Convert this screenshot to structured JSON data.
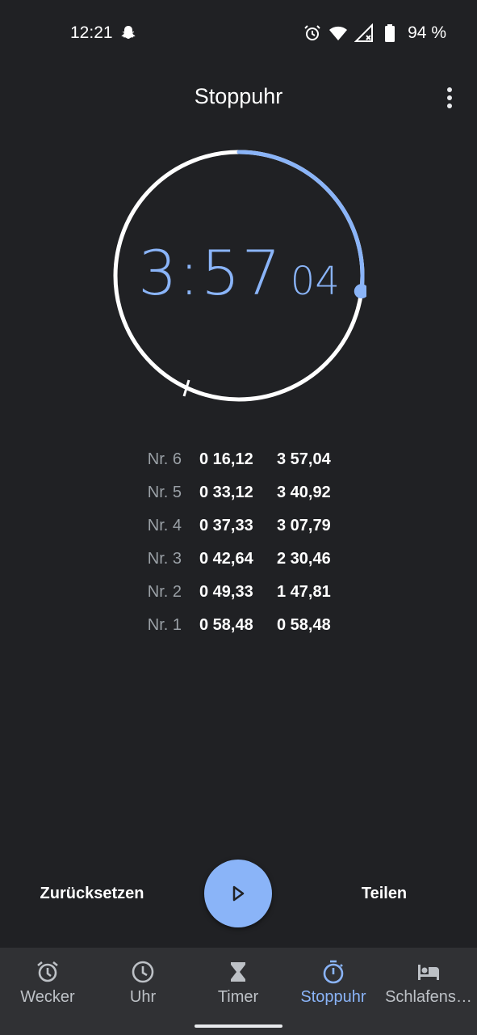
{
  "status_bar": {
    "time": "12:21",
    "battery": "94 %"
  },
  "app_bar": {
    "title": "Stoppuhr"
  },
  "stopwatch": {
    "minutes_seconds": "3:57",
    "hundredths": "04",
    "progress": 0.27
  },
  "laps": [
    {
      "number": "Nr. 6",
      "lap_time": "0 16,12",
      "total_time": "3 57,04"
    },
    {
      "number": "Nr. 5",
      "lap_time": "0 33,12",
      "total_time": "3 40,92"
    },
    {
      "number": "Nr. 4",
      "lap_time": "0 37,33",
      "total_time": "3 07,79"
    },
    {
      "number": "Nr. 3",
      "lap_time": "0 42,64",
      "total_time": "2 30,46"
    },
    {
      "number": "Nr. 2",
      "lap_time": "0 49,33",
      "total_time": "1 47,81"
    },
    {
      "number": "Nr. 1",
      "lap_time": "0 58,48",
      "total_time": "0 58,48"
    }
  ],
  "controls": {
    "reset_label": "Zurücksetzen",
    "share_label": "Teilen",
    "play_icon": "play-icon"
  },
  "nav": {
    "items": [
      {
        "label": "Wecker",
        "icon": "alarm-icon"
      },
      {
        "label": "Uhr",
        "icon": "clock-icon"
      },
      {
        "label": "Timer",
        "icon": "hourglass-icon"
      },
      {
        "label": "Stoppuhr",
        "icon": "stopwatch-icon"
      },
      {
        "label": "Schlafens…",
        "icon": "bed-icon"
      }
    ],
    "active": "Stoppuhr"
  },
  "colors": {
    "background": "#202124",
    "accent": "#8ab4f8",
    "nav_background": "#303134",
    "secondary_text": "#9aa0a6"
  }
}
